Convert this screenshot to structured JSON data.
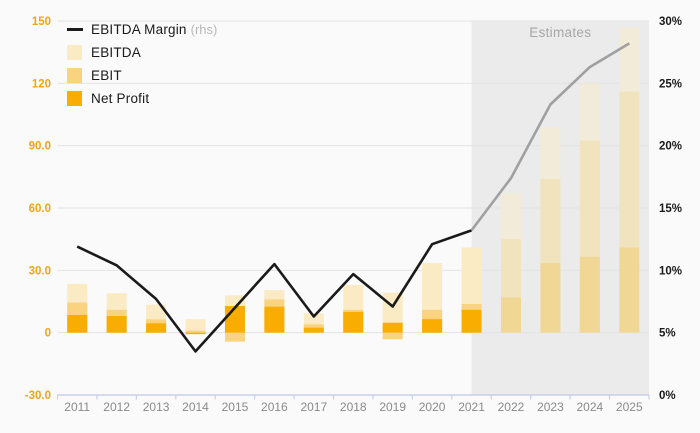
{
  "chart_data": {
    "type": "bar",
    "subtype": "combo-overlaid-bars-with-line",
    "categories": [
      "2011",
      "2012",
      "2013",
      "2014",
      "2015",
      "2016",
      "2017",
      "2018",
      "2019",
      "2020",
      "2021",
      "2022",
      "2023",
      "2024",
      "2025"
    ],
    "series": [
      {
        "name": "EBITDA Margin",
        "type": "line",
        "axis": "right",
        "unit": "%",
        "values": [
          11.9,
          10.4,
          7.7,
          3.5,
          7.0,
          10.5,
          6.3,
          9.7,
          7.1,
          12.1,
          13.2,
          17.4,
          23.3,
          26.3,
          28.2
        ]
      },
      {
        "name": "EBITDA",
        "type": "bar",
        "axis": "left",
        "values": [
          23.5,
          19.0,
          13.5,
          6.5,
          18.0,
          20.5,
          9.3,
          23.0,
          19.3,
          33.5,
          41.0,
          67.0,
          99.0,
          120.0,
          147.0
        ]
      },
      {
        "name": "EBIT",
        "type": "bar",
        "axis": "left",
        "values": [
          14.5,
          11.0,
          6.4,
          1.0,
          -4.3,
          16.0,
          4.0,
          11.0,
          -3.2,
          11.0,
          13.8,
          45.0,
          74.0,
          92.5,
          116.0
        ]
      },
      {
        "name": "Net Profit",
        "type": "bar",
        "axis": "left",
        "values": [
          8.5,
          8.0,
          4.5,
          -0.7,
          12.8,
          12.5,
          2.4,
          10.0,
          4.8,
          6.5,
          11.0,
          17.0,
          33.5,
          36.5,
          41.0
        ]
      }
    ],
    "left_axis": {
      "min": -30,
      "max": 150,
      "ticks": [
        "150",
        "120",
        "90.0",
        "60.0",
        "30.0",
        "0",
        "-30.0"
      ]
    },
    "right_axis": {
      "min": 0,
      "max": 30,
      "ticks": [
        "30%",
        "25%",
        "20%",
        "15%",
        "10%",
        "5%",
        "0%"
      ]
    },
    "estimates": {
      "label": "Estimates",
      "first_estimate_category": "2022",
      "region_starts_at_category": "2021"
    },
    "grid": true,
    "legend_position": "top-left"
  },
  "legend": {
    "items": [
      {
        "label": "EBITDA Margin",
        "note": "(rhs)",
        "marker": "line",
        "color": "#1a1a1a"
      },
      {
        "label": "EBITDA",
        "note": "",
        "marker": "swatch",
        "color": "#fbebc4"
      },
      {
        "label": "EBIT",
        "note": "",
        "marker": "swatch",
        "color": "#f9d37f"
      },
      {
        "label": "Net Profit",
        "note": "",
        "marker": "swatch",
        "color": "#f8ad00"
      }
    ]
  },
  "estimates_label": "Estimates",
  "colors": {
    "background": "#fafafa",
    "estimates_background": "#ebebeb",
    "gridline": "#e3e3e3",
    "axis_line": "#c9d0ea",
    "left_axis_labels": "#f2a413",
    "right_axis_labels": "#1a1a1a",
    "x_axis_labels": "#8a8a8a",
    "margin_line": "#1a1a1a",
    "margin_line_estimates": "#a0a0a0",
    "ebitda_bar": "#fbebc4",
    "ebit_bar": "#f9d37f",
    "net_profit_bar": "#f8ad00",
    "ebitda_bar_estimates": "#f3ebd9",
    "ebit_bar_estimates": "#f1e3be",
    "net_profit_bar_estimates": "#f1d795",
    "estimates_label_text": "#a6a6a6",
    "rhs_note_text": "#b8b8b8"
  }
}
